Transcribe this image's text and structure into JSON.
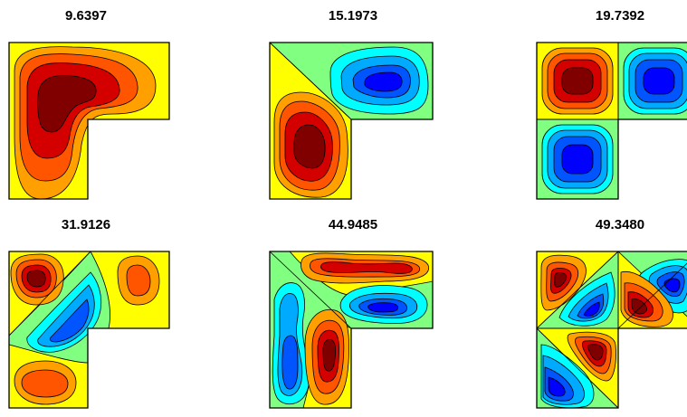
{
  "panels": [
    {
      "title": "9.6397"
    },
    {
      "title": "15.1973"
    },
    {
      "title": "19.7392"
    },
    {
      "title": "31.9126"
    },
    {
      "title": "44.9485"
    },
    {
      "title": "49.3480"
    }
  ],
  "colors": {
    "d4": "#800000",
    "d3": "#d40000",
    "d2": "#ff5500",
    "d1": "#ffa000",
    "zero": "#ffff00",
    "n1": "#80ff80",
    "m2": "#00ffff",
    "m3": "#00aaff",
    "m4": "#0055ff",
    "m5": "#0000ff",
    "outline": "#000000"
  }
}
